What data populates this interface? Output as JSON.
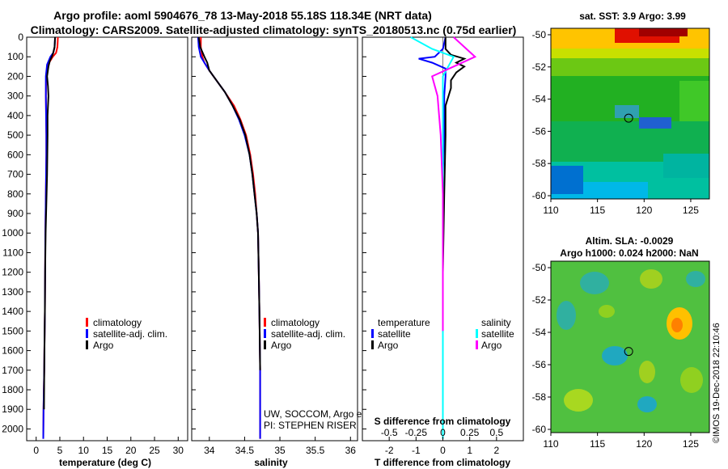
{
  "header": {
    "line1": "Argo profile: aoml 5904676_78 13-May-2018 55.18S 118.34E (NRT data)",
    "line2": "Climatology: CARS2009. Satellite-adjusted climatology: synTS_20180513.nc (0.75d earlier)"
  },
  "colors": {
    "climatology": "#ff0000",
    "satellite_adj": "#0000ff",
    "argo": "#000000",
    "argo_salinity": "#ff00ff",
    "satellite_salinity": "#00ffff"
  },
  "chart_data": [
    {
      "type": "line",
      "id": "temperature",
      "xlabel": "temperature (deg C)",
      "xlim": [
        -2,
        32
      ],
      "xticks": [
        0,
        5,
        10,
        15,
        20,
        25,
        30
      ],
      "ylim": [
        2060,
        0
      ],
      "yticks": [
        0,
        100,
        200,
        300,
        400,
        500,
        600,
        700,
        800,
        900,
        1000,
        1100,
        1200,
        1300,
        1400,
        1500,
        1600,
        1700,
        1800,
        1900,
        2000
      ],
      "legend": [
        "climatology",
        "satellite-adj. clim.",
        "Argo"
      ],
      "series": [
        {
          "name": "climatology",
          "x": [
            4.6,
            4.5,
            4.2,
            3.5,
            2.5,
            2.1,
            2.05,
            2.1,
            2.15,
            2.15,
            2.1,
            2.05,
            2.0,
            1.95,
            1.9,
            1.85,
            1.8,
            1.75,
            1.7,
            1.62,
            1.55,
            1.5
          ],
          "depth": [
            0,
            50,
            80,
            100,
            140,
            200,
            300,
            400,
            500,
            600,
            700,
            800,
            900,
            1000,
            1200,
            1400,
            1500,
            1600,
            1700,
            1800,
            1900,
            2050
          ]
        },
        {
          "name": "satellite-adj. clim.",
          "x": [
            4.0,
            3.9,
            3.6,
            3.0,
            2.3,
            2.05,
            2.05,
            2.1,
            2.15,
            2.15,
            2.1,
            2.05,
            2.0,
            1.95,
            1.9,
            1.85,
            1.8,
            1.75,
            1.7,
            1.62,
            1.55,
            1.5
          ],
          "depth": [
            0,
            50,
            80,
            100,
            140,
            200,
            300,
            400,
            500,
            600,
            700,
            800,
            900,
            1000,
            1200,
            1400,
            1500,
            1600,
            1700,
            1800,
            1900,
            2050
          ]
        },
        {
          "name": "Argo",
          "x": [
            4.0,
            3.9,
            3.6,
            3.3,
            2.9,
            2.6,
            2.3,
            2.5,
            2.6,
            2.4,
            2.4,
            2.35,
            2.3,
            2.2,
            2.1,
            2.0,
            1.9,
            1.85,
            1.8,
            1.7,
            1.65
          ],
          "depth": [
            0,
            50,
            80,
            100,
            120,
            150,
            200,
            250,
            300,
            400,
            500,
            600,
            700,
            800,
            900,
            1000,
            1200,
            1400,
            1500,
            1700,
            1900
          ]
        }
      ]
    },
    {
      "type": "line",
      "id": "salinity",
      "xlabel": "salinity",
      "xlim": [
        33.75,
        36.1
      ],
      "xticks": [
        34,
        34.5,
        35,
        35.5,
        36
      ],
      "ylim": [
        2060,
        0
      ],
      "legend": [
        "climatology",
        "satellite-adj. clim.",
        "Argo"
      ],
      "annotations": [
        "UW, SOCCOM, Argo equivalent",
        "PI: STEPHEN RISER"
      ],
      "series": [
        {
          "name": "climatology",
          "x": [
            33.88,
            33.88,
            33.9,
            33.93,
            34.0,
            34.1,
            34.22,
            34.35,
            34.44,
            34.52,
            34.58,
            34.62,
            34.65,
            34.67,
            34.69,
            34.7,
            34.71,
            34.72,
            34.72
          ],
          "depth": [
            0,
            50,
            100,
            130,
            170,
            220,
            280,
            350,
            420,
            500,
            600,
            700,
            800,
            900,
            1000,
            1200,
            1400,
            1700,
            2050
          ]
        },
        {
          "name": "satellite-adj. clim.",
          "x": [
            33.84,
            33.85,
            33.88,
            33.93,
            34.0,
            34.1,
            34.22,
            34.33,
            34.42,
            34.5,
            34.57,
            34.61,
            34.64,
            34.67,
            34.69,
            34.7,
            34.71,
            34.72,
            34.72
          ],
          "depth": [
            0,
            50,
            100,
            130,
            170,
            220,
            280,
            350,
            420,
            500,
            600,
            700,
            800,
            900,
            1000,
            1200,
            1400,
            1700,
            2050
          ]
        },
        {
          "name": "Argo",
          "x": [
            33.85,
            33.87,
            33.93,
            33.97,
            34.0,
            34.1,
            34.22,
            34.33,
            34.43,
            34.51,
            34.57,
            34.61,
            34.64,
            34.67,
            34.69,
            34.7,
            34.71,
            34.72
          ],
          "depth": [
            0,
            50,
            100,
            130,
            170,
            220,
            280,
            350,
            420,
            500,
            600,
            700,
            800,
            900,
            1000,
            1200,
            1400,
            1700
          ]
        }
      ]
    },
    {
      "type": "line",
      "id": "difference",
      "xlabel": "T difference from climatology",
      "xlabel2": "S difference from climatology",
      "xlim": [
        -3,
        3
      ],
      "xticks": [
        -2,
        -1,
        0,
        1,
        2
      ],
      "xticks_s": [
        "-0.5",
        "-0.25",
        "0",
        "0.25",
        "0.5"
      ],
      "xticks_s_values": [
        -0.5,
        -0.25,
        0,
        0.25,
        0.5
      ],
      "legend_titles": [
        "temperature",
        "salinity"
      ],
      "legend": [
        "satellite",
        "Argo",
        "satellite",
        "Argo"
      ],
      "series": [
        {
          "name": "temperature satellite",
          "x": [
            0.1,
            0.0,
            -0.3,
            -0.9,
            -0.4,
            0.1,
            0.1,
            0.05,
            0.05,
            0.0,
            0.0,
            0.0,
            0.0
          ],
          "depth": [
            0,
            60,
            100,
            110,
            130,
            160,
            200,
            300,
            500,
            700,
            1000,
            1500,
            2050
          ]
        },
        {
          "name": "temperature Argo",
          "x": [
            0.1,
            0.1,
            0.3,
            0.8,
            0.5,
            0.8,
            0.5,
            0.3,
            0.3,
            0.1,
            0.1,
            0.05,
            0.0,
            0.0
          ],
          "depth": [
            0,
            60,
            90,
            110,
            130,
            150,
            180,
            220,
            260,
            350,
            500,
            800,
            1200,
            2000
          ]
        },
        {
          "name": "salinity satellite",
          "x": [
            -0.3,
            -0.1,
            0.1,
            0.0,
            0.0,
            0.0,
            0.0,
            0.0
          ],
          "depth": [
            0,
            60,
            100,
            200,
            400,
            700,
            1200,
            2050
          ]
        },
        {
          "name": "salinity Argo",
          "x": [
            0.1,
            0.3,
            0.1,
            -0.1,
            -0.05,
            -0.02,
            0.0,
            0.0
          ],
          "depth": [
            0,
            100,
            150,
            200,
            300,
            500,
            800,
            1500
          ]
        }
      ]
    },
    {
      "type": "heatmap",
      "id": "sst",
      "title": "sat. SST: 3.9 Argo: 3.99",
      "xlim": [
        110,
        127
      ],
      "ylim": [
        -60.2,
        -49.6
      ],
      "xticks": [
        110,
        115,
        120,
        125
      ],
      "yticks": [
        -50,
        -52,
        -54,
        -56,
        -58,
        -60
      ],
      "marker": {
        "lon": 118.34,
        "lat": -55.18
      }
    },
    {
      "type": "heatmap",
      "id": "sla",
      "title": "Altim. SLA: -0.0029",
      "subtitle": "Argo h1000: 0.024 h2000: NaN",
      "xlim": [
        110,
        127
      ],
      "ylim": [
        -60.2,
        -49.6
      ],
      "xticks": [
        110,
        115,
        120,
        125
      ],
      "yticks": [
        -50,
        -52,
        -54,
        -56,
        -58,
        -60
      ],
      "marker": {
        "lon": 118.34,
        "lat": -55.18
      }
    }
  ],
  "stamp": "©IMOS 19-Dec-2018 22:10:46"
}
